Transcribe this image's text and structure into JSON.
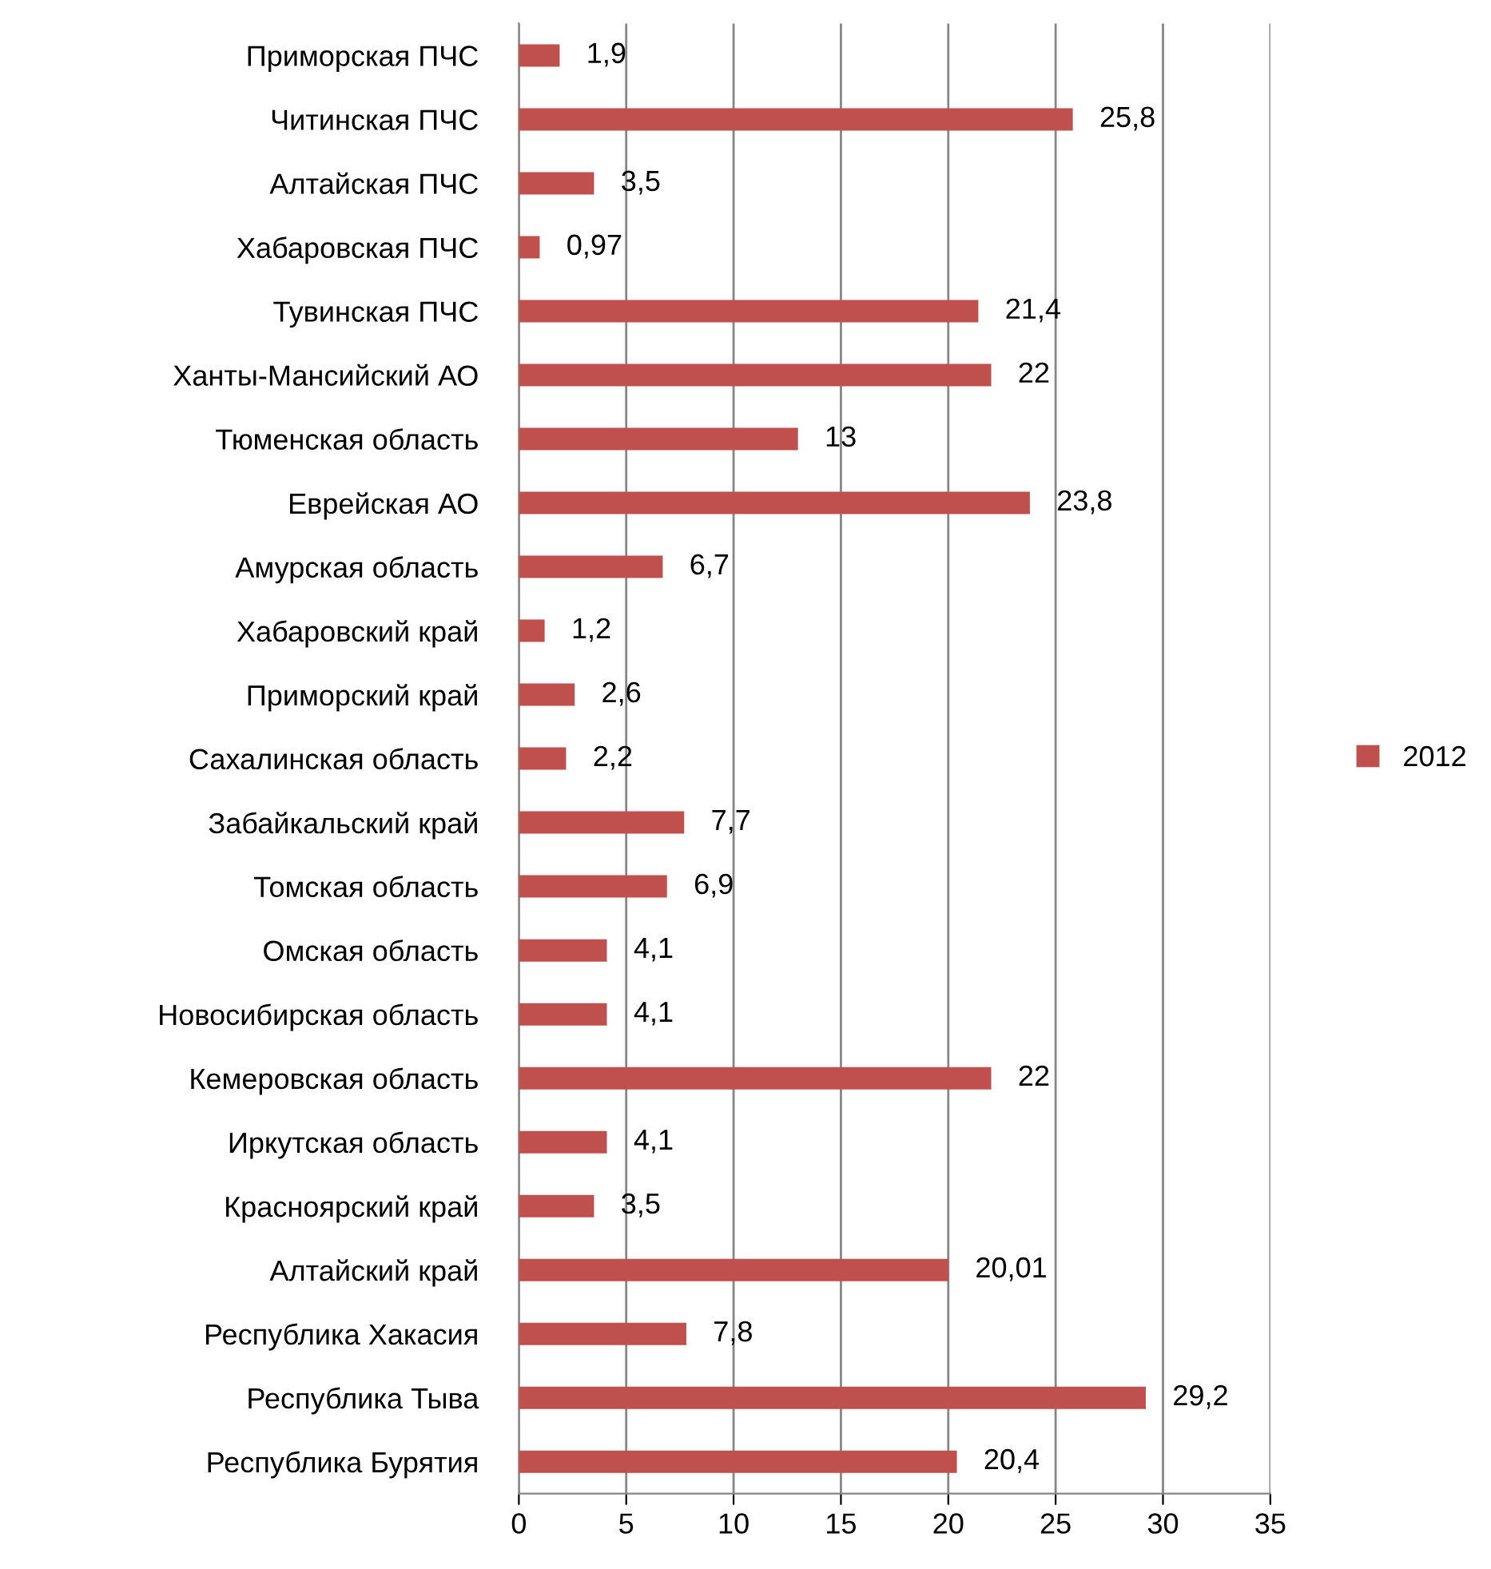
{
  "chart_data": {
    "type": "bar",
    "orientation": "horizontal",
    "categories": [
      "Приморская ПЧС",
      "Читинская ПЧС",
      "Алтайская ПЧС",
      "Хабаровская ПЧС",
      "Тувинская ПЧС",
      "Ханты-Мансийский АО",
      "Тюменская область",
      "Еврейская АО",
      "Амурская область",
      "Хабаровский край",
      "Приморский край",
      "Сахалинская область",
      "Забайкальский край",
      "Томская область",
      "Омская область",
      "Новосибирская область",
      "Кемеровская область",
      "Иркутская область",
      "Красноярский край",
      "Алтайский край",
      "Республика Хакасия",
      "Республика Тыва",
      "Республика Бурятия"
    ],
    "series": [
      {
        "name": "2012",
        "color": "#c0504d",
        "values": [
          1.9,
          25.8,
          3.5,
          0.97,
          21.4,
          22,
          13,
          23.8,
          6.7,
          1.2,
          2.6,
          2.2,
          7.7,
          6.9,
          4.1,
          4.1,
          22,
          4.1,
          3.5,
          20.01,
          7.8,
          29.2,
          20.4
        ],
        "value_labels": [
          "1,9",
          "25,8",
          "3,5",
          "0,97",
          "21,4",
          "22",
          "13",
          "23,8",
          "6,7",
          "1,2",
          "2,6",
          "2,2",
          "7,7",
          "6,9",
          "4,1",
          "4,1",
          "22",
          "4,1",
          "3,5",
          "20,01",
          "7,8",
          "29,2",
          "20,4"
        ]
      }
    ],
    "xlim": [
      0,
      35
    ],
    "xticks": [
      0,
      5,
      10,
      15,
      20,
      25,
      30,
      35
    ],
    "grid": "x",
    "legend": "right"
  }
}
